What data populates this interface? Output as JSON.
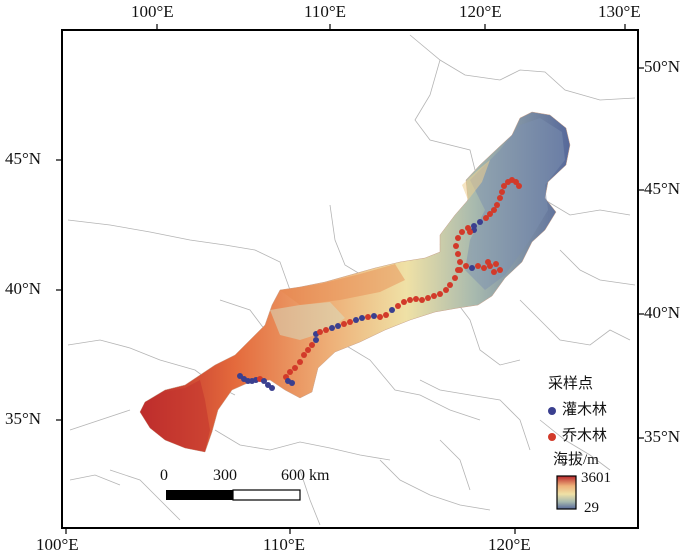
{
  "map": {
    "top_lon_labels": [
      "100°E",
      "110°E",
      "120°E",
      "130°E"
    ],
    "bottom_lon_labels": [
      "100°E",
      "110°E",
      "120°E"
    ],
    "left_lat_labels": [
      "45°N",
      "40°N",
      "35°N"
    ],
    "right_lat_labels": [
      "50°N",
      "45°N",
      "40°N",
      "35°N"
    ]
  },
  "legend": {
    "title": "采样点",
    "items": [
      {
        "label": "灌木林",
        "color": "#3a3f8f"
      },
      {
        "label": "乔木林",
        "color": "#d23a2a"
      }
    ],
    "elevation_title": "海拔/m",
    "elevation_max": "3601",
    "elevation_min": "29"
  },
  "scale_bar": {
    "labels": [
      "0",
      "300",
      "600 km"
    ]
  },
  "colors": {
    "high_elevation": "#b8262b",
    "mid_elevation": "#e8a070",
    "low_mid_elevation": "#f0e2a8",
    "low_elevation": "#56689a",
    "border": "#a8a8a8",
    "frame": "#000000"
  }
}
